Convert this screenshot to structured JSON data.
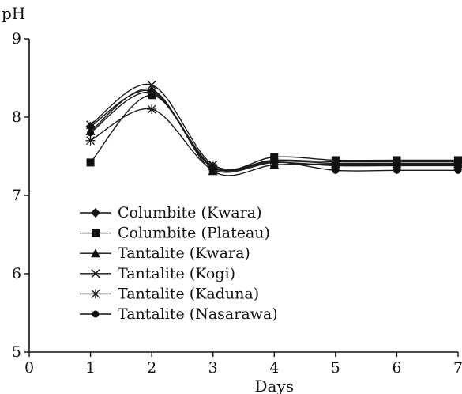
{
  "chart_data": {
    "type": "line",
    "title": "",
    "xlabel": "Days",
    "ylabel": "pH",
    "x": [
      1,
      2,
      3,
      4,
      5,
      6,
      7
    ],
    "xlim": [
      0,
      7
    ],
    "ylim": [
      5,
      9
    ],
    "xticks": [
      "0",
      "1",
      "2",
      "3",
      "4",
      "5",
      "6",
      "7"
    ],
    "yticks": [
      "5",
      "6",
      "7",
      "8",
      "9"
    ],
    "grid": false,
    "legend_position": "center-left",
    "series": [
      {
        "name": "Columbite (Kwara)",
        "marker": "diamond",
        "values": [
          7.88,
          8.33,
          7.37,
          7.44,
          7.41,
          7.41,
          7.41
        ]
      },
      {
        "name": "Columbite (Plateau)",
        "marker": "square",
        "values": [
          7.42,
          8.28,
          7.35,
          7.49,
          7.45,
          7.45,
          7.45
        ]
      },
      {
        "name": "Tantalite (Kwara)",
        "marker": "triangle",
        "values": [
          7.82,
          8.35,
          7.31,
          7.39,
          7.4,
          7.4,
          7.4
        ]
      },
      {
        "name": "Tantalite (Kogi)",
        "marker": "x",
        "values": [
          7.9,
          8.41,
          7.39,
          7.45,
          7.43,
          7.43,
          7.43
        ]
      },
      {
        "name": "Tantalite (Kaduna)",
        "marker": "star",
        "values": [
          7.7,
          8.1,
          7.33,
          7.42,
          7.38,
          7.38,
          7.38
        ]
      },
      {
        "name": "Tantalite (Nasarawa)",
        "marker": "circle",
        "values": [
          7.8,
          8.31,
          7.36,
          7.43,
          7.32,
          7.32,
          7.32
        ]
      }
    ]
  }
}
